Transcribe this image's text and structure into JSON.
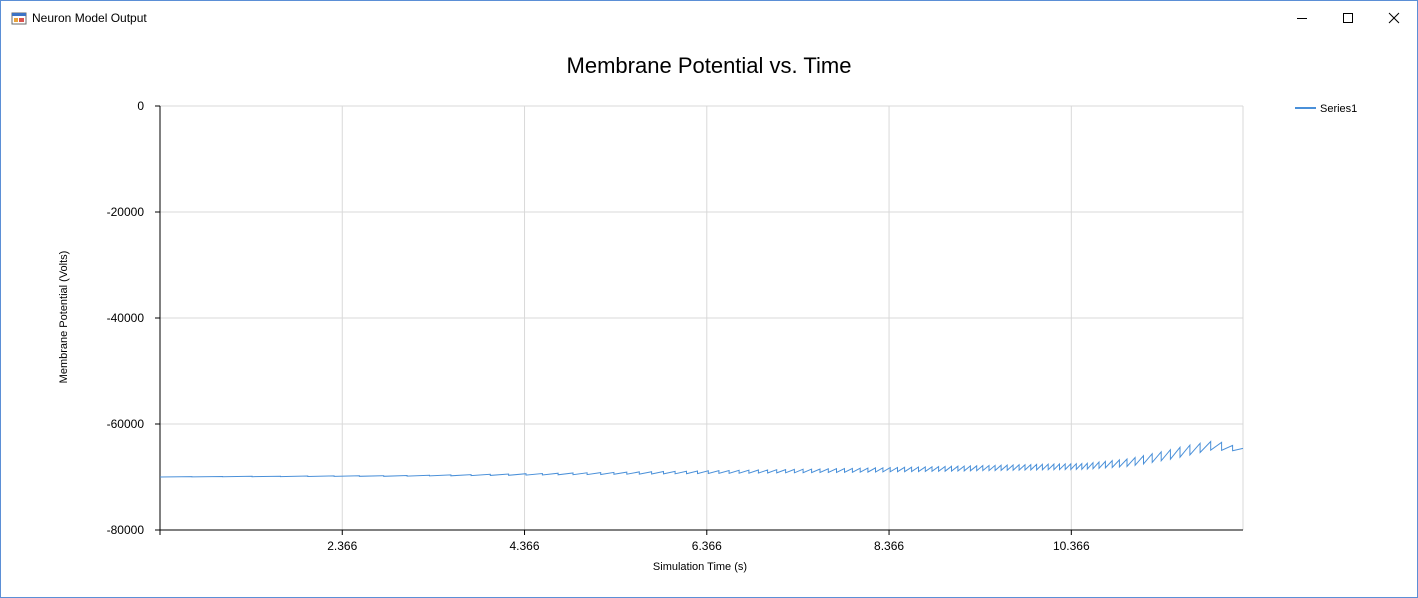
{
  "window": {
    "title": "Neuron Model Output",
    "minimize_icon": "minimize-icon",
    "maximize_icon": "maximize-icon",
    "close_icon": "close-icon",
    "app_icon": "app-form-icon"
  },
  "chart_data": {
    "type": "line",
    "title": "Membrane Potential vs. Time",
    "xlabel": "Simulation Time (s)",
    "ylabel": "Membrane Potential (Volts)",
    "xlim": [
      0.366,
      12.25
    ],
    "ylim": [
      -80000,
      0
    ],
    "xticks": [
      "2.366",
      "4.366",
      "6.366",
      "8.366",
      "10.366"
    ],
    "yticks": [
      "0",
      "-20000",
      "-40000",
      "-60000",
      "-80000"
    ],
    "grid": true,
    "legend_position": "top-right",
    "colors": {
      "series": "#4a90d9",
      "grid": "#d9d9d9",
      "axis": "#000000"
    },
    "series": [
      {
        "name": "Series1",
        "trend": [
          [
            0.366,
            -70000
          ],
          [
            2.0,
            -69900
          ],
          [
            3.0,
            -69850
          ],
          [
            4.0,
            -69700
          ],
          [
            5.0,
            -69550
          ],
          [
            6.0,
            -69400
          ],
          [
            7.0,
            -69250
          ],
          [
            8.0,
            -69100
          ],
          [
            9.0,
            -68900
          ],
          [
            10.0,
            -68650
          ],
          [
            10.5,
            -68550
          ],
          [
            11.0,
            -68000
          ],
          [
            11.5,
            -66500
          ],
          [
            11.9,
            -64900
          ],
          [
            12.25,
            -65100
          ]
        ],
        "sawtooth_amplitude": [
          [
            0.366,
            50
          ],
          [
            3.0,
            120
          ],
          [
            5.0,
            350
          ],
          [
            7.0,
            600
          ],
          [
            9.0,
            900
          ],
          [
            10.5,
            1100
          ],
          [
            11.0,
            1500
          ],
          [
            11.5,
            1900
          ],
          [
            11.9,
            1500
          ],
          [
            12.25,
            0
          ]
        ],
        "spike_interval": [
          [
            0.366,
            0.35
          ],
          [
            3.0,
            0.25
          ],
          [
            5.0,
            0.15
          ],
          [
            7.0,
            0.1
          ],
          [
            9.0,
            0.07
          ],
          [
            10.5,
            0.06
          ],
          [
            11.0,
            0.09
          ],
          [
            11.9,
            0.12
          ],
          [
            12.25,
            0.12
          ]
        ]
      }
    ]
  }
}
